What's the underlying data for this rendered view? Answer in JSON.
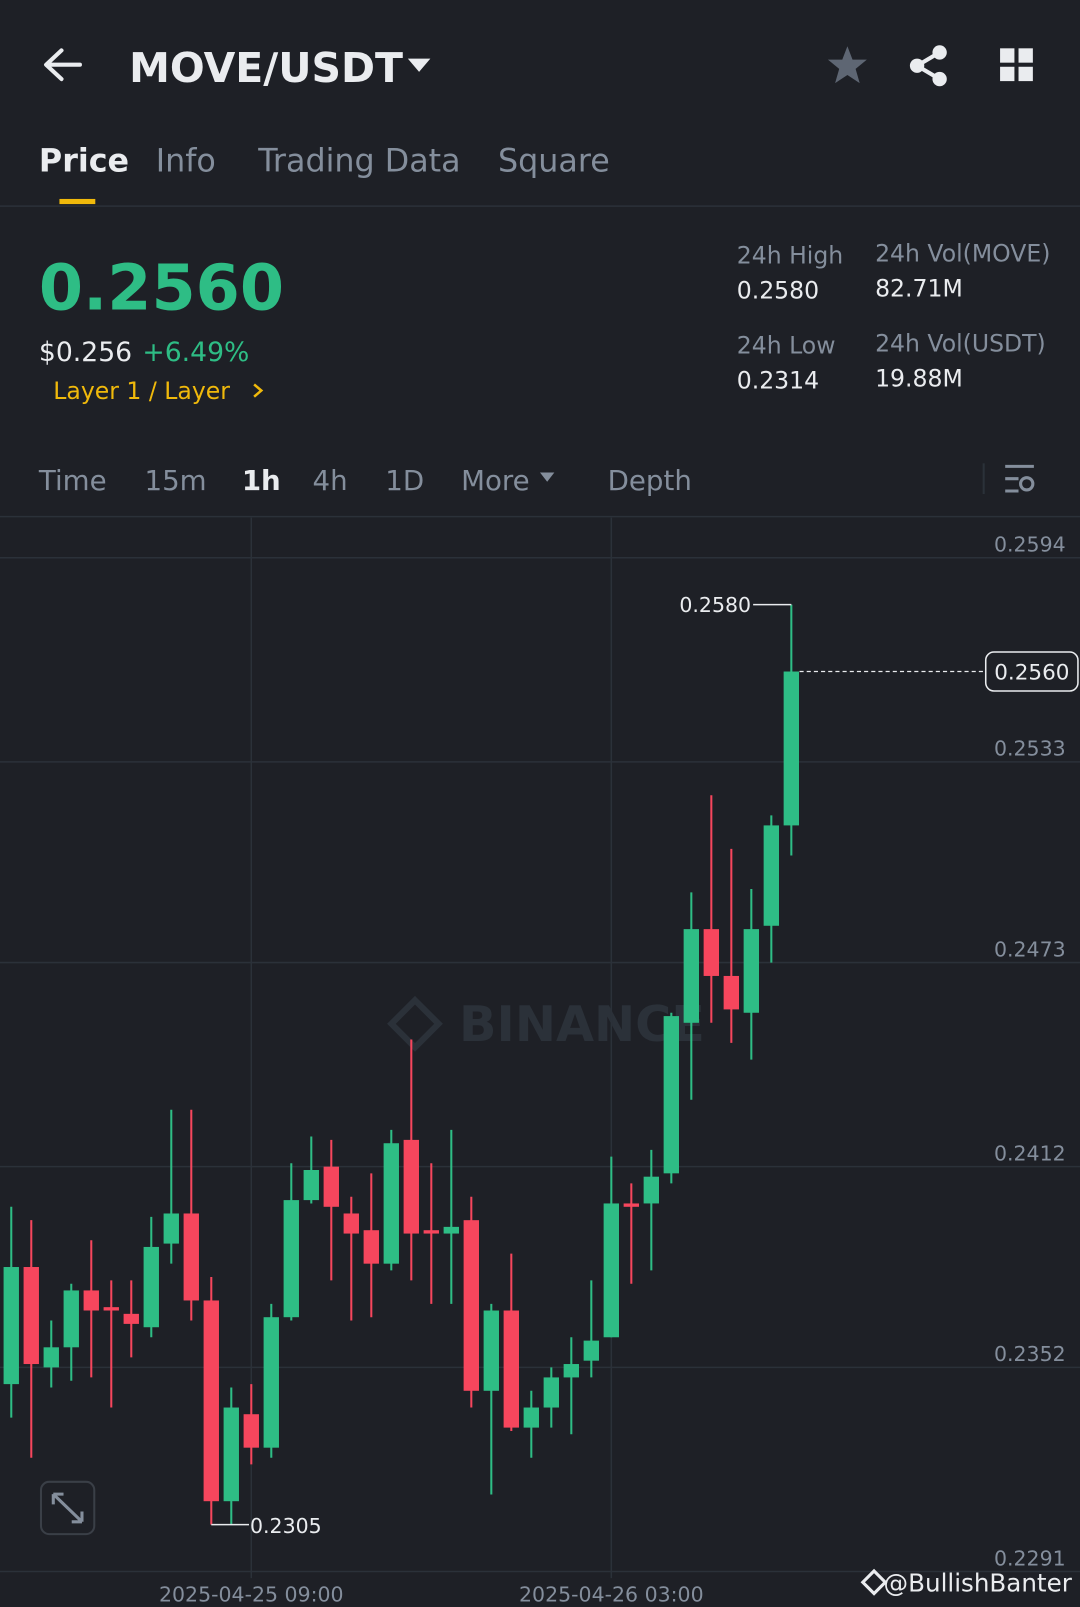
{
  "header": {
    "pair": "MOVE/USDT"
  },
  "tabs": [
    "Price",
    "Info",
    "Trading Data",
    "Square"
  ],
  "ticker": {
    "price": "0.2560",
    "usd_price": "$0.256",
    "change": "+6.49%",
    "tag": "Layer 1 / Layer",
    "stats": [
      {
        "label": "24h High",
        "value": "0.2580"
      },
      {
        "label": "24h Vol(MOVE)",
        "value": "82.71M"
      },
      {
        "label": "24h Low",
        "value": "0.2314"
      },
      {
        "label": "24h Vol(USDT)",
        "value": "19.88M"
      }
    ]
  },
  "intervals": [
    "Time",
    "15m",
    "1h",
    "4h",
    "1D",
    "More",
    "Depth"
  ],
  "watermark": "BINANCE",
  "credit": "@BullishBanter",
  "chart_data": {
    "type": "candlestick",
    "categories": [
      null,
      null,
      null,
      null,
      null,
      null,
      null,
      null,
      null,
      null,
      null,
      null,
      "2025-04-25 09:00",
      null,
      null,
      null,
      null,
      null,
      null,
      null,
      null,
      null,
      null,
      null,
      null,
      null,
      null,
      null,
      null,
      null,
      "2025-04-26 03:00",
      null,
      null,
      null,
      null,
      null,
      null,
      null,
      null,
      null
    ],
    "open": [
      0.2347,
      0.2382,
      0.2352,
      0.2358,
      0.2375,
      0.237,
      0.2368,
      0.2364,
      0.2389,
      0.2398,
      0.2372,
      0.2312,
      0.2338,
      0.2328,
      0.2367,
      0.2402,
      0.2412,
      0.2398,
      0.2393,
      0.2383,
      0.242,
      0.2393,
      0.2392,
      0.2396,
      0.2345,
      0.2369,
      0.2334,
      0.234,
      0.2349,
      0.2354,
      0.2361,
      0.2401,
      0.2401,
      0.241,
      0.2455,
      0.2483,
      0.2469,
      0.2458,
      0.2484,
      0.2514
    ],
    "high": [
      0.24,
      0.2396,
      0.2366,
      0.2377,
      0.239,
      0.2378,
      0.2378,
      0.2397,
      0.2429,
      0.2429,
      0.2379,
      0.2346,
      0.2347,
      0.2371,
      0.2413,
      0.2421,
      0.242,
      0.2403,
      0.241,
      0.2423,
      0.245,
      0.2413,
      0.2423,
      0.2403,
      0.2371,
      0.2386,
      0.2345,
      0.2352,
      0.2361,
      0.2378,
      0.2415,
      0.2407,
      0.2417,
      0.2458,
      0.2494,
      0.2523,
      0.2507,
      0.2495,
      0.2517,
      0.258
    ],
    "low": [
      0.2337,
      0.2325,
      0.2346,
      0.2348,
      0.2349,
      0.234,
      0.2355,
      0.2361,
      0.2383,
      0.2366,
      0.2305,
      0.2305,
      0.2323,
      0.2325,
      0.2366,
      0.2401,
      0.2378,
      0.2366,
      0.2367,
      0.2381,
      0.2378,
      0.2371,
      0.2371,
      0.234,
      0.2314,
      0.2333,
      0.2325,
      0.2334,
      0.2332,
      0.2349,
      0.2361,
      0.2377,
      0.2381,
      0.2407,
      0.2432,
      0.2455,
      0.2449,
      0.2444,
      0.2473,
      0.2505
    ],
    "close": [
      0.2382,
      0.2353,
      0.2358,
      0.2375,
      0.2369,
      0.2369,
      0.2365,
      0.2388,
      0.2398,
      0.2372,
      0.2312,
      0.234,
      0.2328,
      0.2367,
      0.2402,
      0.2411,
      0.24,
      0.2392,
      0.2383,
      0.2419,
      0.2392,
      0.2392,
      0.2394,
      0.2345,
      0.2369,
      0.2334,
      0.234,
      0.2349,
      0.2353,
      0.236,
      0.2401,
      0.24,
      0.2409,
      0.2457,
      0.2483,
      0.2469,
      0.2459,
      0.2483,
      0.2514,
      0.256
    ],
    "up_color": "#2ebd85",
    "down_color": "#f6465d",
    "ylim": [
      0.2289,
      0.2606
    ],
    "yticks": [
      0.2594,
      0.2533,
      0.2473,
      0.2412,
      0.2352,
      0.2291
    ],
    "grid": true,
    "high_marker": {
      "value": 0.258,
      "label": "0.2580"
    },
    "low_marker": 0.2305,
    "last_price": {
      "value": 0.256,
      "label": "0.2560"
    }
  }
}
